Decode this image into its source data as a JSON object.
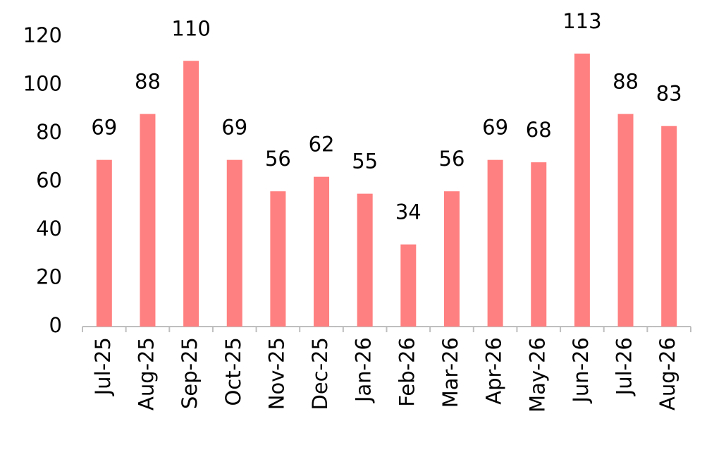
{
  "chart_data": {
    "type": "bar",
    "categories": [
      "Jul-25",
      "Aug-25",
      "Sep-25",
      "Oct-25",
      "Nov-25",
      "Dec-25",
      "Jan-26",
      "Feb-26",
      "Mar-26",
      "Apr-26",
      "May-26",
      "Jun-26",
      "Jul-26",
      "Aug-26"
    ],
    "values": [
      69,
      88,
      110,
      69,
      56,
      62,
      55,
      34,
      56,
      69,
      68,
      113,
      88,
      83
    ],
    "color": "#ff8080",
    "ylim": [
      0,
      120
    ],
    "yticks": [
      0,
      20,
      40,
      60,
      80,
      100,
      120
    ],
    "grid": false
  }
}
